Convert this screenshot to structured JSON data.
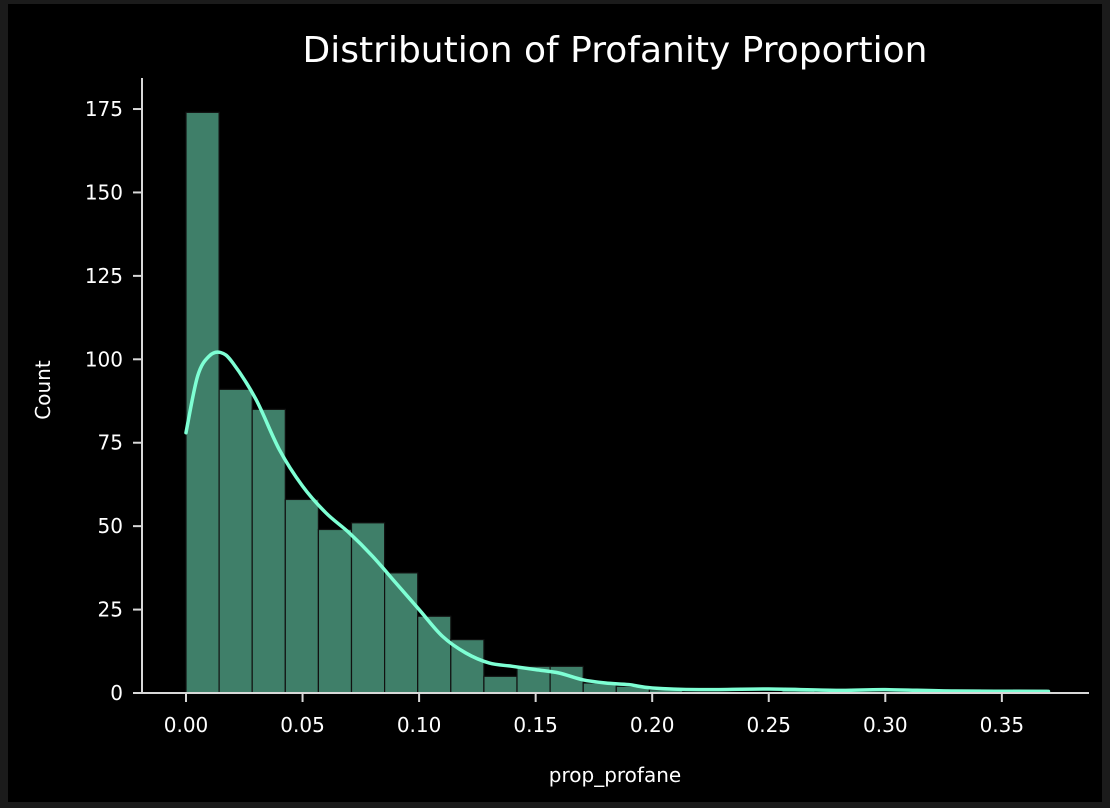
{
  "chart_data": {
    "type": "bar",
    "title": "Distribution of Profanity Proportion",
    "xlabel": "prop_profane",
    "ylabel": "Count",
    "xlim": [
      -0.0185,
      0.385
    ],
    "ylim": [
      0,
      183
    ],
    "x_ticks": [
      "0.00",
      "0.05",
      "0.10",
      "0.15",
      "0.20",
      "0.25",
      "0.30",
      "0.35"
    ],
    "x_tick_values": [
      0,
      0.05,
      0.1,
      0.15,
      0.2,
      0.25,
      0.3,
      0.35
    ],
    "y_ticks": [
      "0",
      "25",
      "50",
      "75",
      "100",
      "125",
      "150",
      "175"
    ],
    "y_tick_values": [
      0,
      25,
      50,
      75,
      100,
      125,
      150,
      175
    ],
    "bin_width": 0.0142,
    "bin_start": 0.0,
    "values": [
      174,
      91,
      85,
      58,
      49,
      51,
      36,
      23,
      16,
      5,
      8,
      8,
      3,
      2,
      1,
      0,
      0,
      0,
      1,
      0,
      0,
      0,
      0,
      1,
      0,
      1
    ],
    "kde": {
      "label": "KDE",
      "x": [
        0.0,
        0.005,
        0.01,
        0.015,
        0.02,
        0.03,
        0.04,
        0.05,
        0.06,
        0.07,
        0.08,
        0.09,
        0.1,
        0.11,
        0.12,
        0.13,
        0.14,
        0.15,
        0.16,
        0.17,
        0.18,
        0.19,
        0.2,
        0.22,
        0.25,
        0.28,
        0.3,
        0.33,
        0.37
      ],
      "y": [
        78,
        95,
        101,
        102,
        99,
        88,
        73,
        62,
        54,
        48,
        41,
        33,
        25,
        17,
        12,
        9,
        8,
        7,
        6,
        4,
        3,
        2.5,
        1.5,
        1,
        1.2,
        0.8,
        1.0,
        0.6,
        0.5
      ]
    },
    "colors": {
      "bar": "#3f7f69",
      "bar_edge": "#111111",
      "kde": "#7effd4",
      "axis": "#d8d8d8",
      "text": "#ffffff",
      "background": "#000000"
    },
    "grid": false,
    "legend": null
  }
}
